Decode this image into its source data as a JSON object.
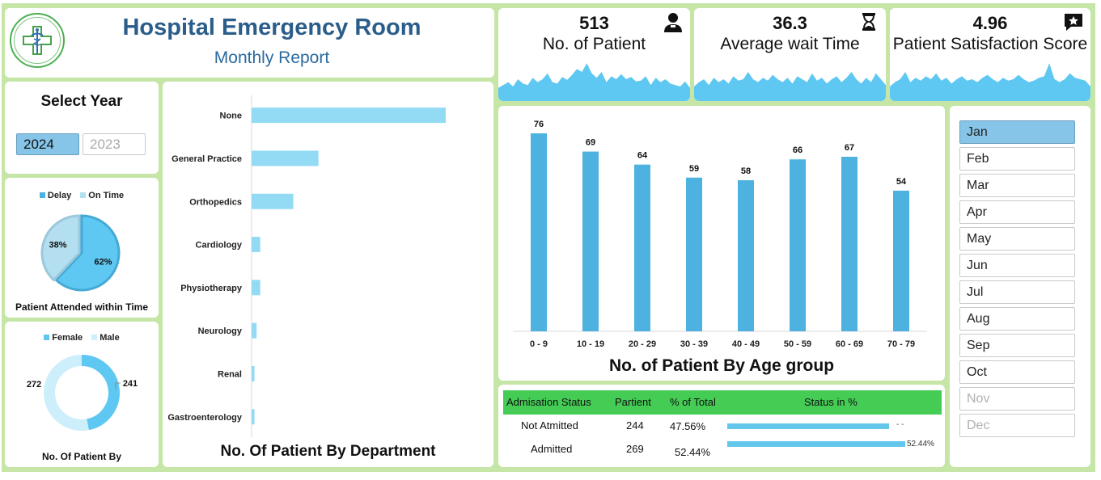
{
  "header": {
    "title": "Hospital Emergency Room",
    "subtitle": "Monthly Report"
  },
  "kpis": [
    {
      "value": "513",
      "label": "No. of  Patient",
      "icon": "doctor-icon",
      "spark": [
        42,
        38,
        34,
        40,
        30,
        36,
        38,
        28,
        34,
        30,
        22,
        34,
        36,
        27,
        31,
        24,
        16,
        20,
        8,
        22,
        28,
        20,
        34,
        26,
        30,
        23,
        30,
        27,
        33,
        32,
        26,
        38,
        28,
        34,
        30,
        36,
        38,
        40,
        33,
        42
      ]
    },
    {
      "value": "36.3",
      "label": "Average wait Time",
      "icon": "hourglass-icon",
      "spark": [
        40,
        34,
        30,
        38,
        28,
        34,
        30,
        36,
        26,
        32,
        30,
        20,
        30,
        34,
        28,
        32,
        24,
        30,
        34,
        28,
        36,
        26,
        30,
        34,
        22,
        32,
        28,
        36,
        30,
        26,
        34,
        28,
        20,
        30,
        36,
        28,
        34,
        22,
        30,
        38
      ]
    },
    {
      "value": "4.96",
      "label": "Patient Satisfaction Score",
      "icon": "star-icon",
      "spark": [
        40,
        34,
        30,
        20,
        34,
        28,
        32,
        26,
        30,
        22,
        32,
        28,
        36,
        30,
        26,
        32,
        30,
        34,
        28,
        24,
        30,
        34,
        28,
        32,
        30,
        24,
        30,
        34,
        32,
        28,
        26,
        8,
        30,
        34,
        30,
        22,
        28,
        30,
        32,
        40
      ]
    }
  ],
  "year_slicer": {
    "title": "Select Year",
    "options": [
      "2024",
      "2023"
    ],
    "selected": "2024"
  },
  "time_pie": {
    "legend": [
      "Delay",
      "On Time"
    ],
    "labels": [
      "62%",
      "38%"
    ],
    "values": [
      62,
      38
    ],
    "caption": "Patient Attended within Time",
    "colors": [
      "#5ec8f2",
      "#b3dff0"
    ]
  },
  "gender_donut": {
    "legend": [
      "Female",
      "Male"
    ],
    "labels": [
      "241",
      "272"
    ],
    "values": [
      241,
      272
    ],
    "caption": "No. Of Patient  By",
    "colors": [
      "#5ec8f2",
      "#cdeefb"
    ]
  },
  "chart_data": [
    {
      "type": "bar",
      "orientation": "horizontal",
      "title": "No. Of Patient By Department",
      "categories": [
        "None",
        "General Practice",
        "Orthopedics",
        "Cardiology",
        "Physiotherapy",
        "Neurology",
        "Renal",
        "Gastroenterology"
      ],
      "values": [
        270,
        93,
        58,
        12,
        12,
        7,
        4,
        4
      ],
      "color": "#93dbf5"
    },
    {
      "type": "bar",
      "title": "No. of  Patient By Age group",
      "categories": [
        "0 - 9",
        "10 - 19",
        "20 - 29",
        "30 - 39",
        "40 - 49",
        "50 - 59",
        "60 - 69",
        "70 - 79"
      ],
      "values": [
        76,
        69,
        64,
        59,
        58,
        66,
        67,
        54
      ],
      "color": "#4db2e0"
    }
  ],
  "months": {
    "items": [
      "Jan",
      "Feb",
      "Mar",
      "Apr",
      "May",
      "Jun",
      "Jul",
      "Aug",
      "Sep",
      "Oct",
      "Nov",
      "Dec"
    ],
    "selected": "Jan",
    "disabled": [
      "Nov",
      "Dec"
    ]
  },
  "admission_table": {
    "headers": [
      "Admisation Status",
      "Partient",
      "% of Total",
      "Status in %"
    ],
    "rows": [
      {
        "status": "Not Atmitted",
        "patients": "244",
        "pct": "47.56%",
        "bar_value": 47.56,
        "bar_label": "- -"
      },
      {
        "status": "Admitted",
        "patients": "269",
        "pct": "52.44%",
        "bar_value": 52.44,
        "bar_label": "52.44%"
      }
    ],
    "header_color": "#44cc55",
    "bar_color": "#63c7ec"
  }
}
